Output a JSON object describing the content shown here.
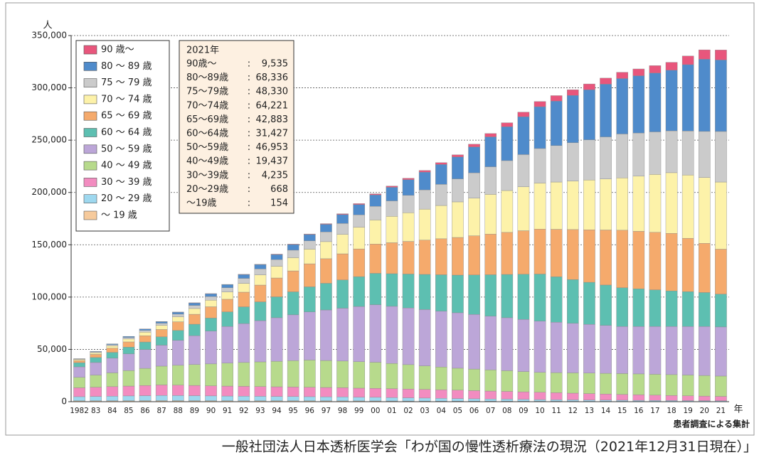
{
  "chart_data": {
    "type": "stacked_bar",
    "y_unit": "人",
    "x_unit": "年",
    "note": "患者調査による集計",
    "source": "一般社団法人日本透析医学会「わが国の慢性透析療法の現況（2021年12月31日現在）」",
    "categories": [
      "1982",
      "83",
      "84",
      "85",
      "86",
      "87",
      "88",
      "89",
      "90",
      "91",
      "92",
      "93",
      "94",
      "95",
      "96",
      "97",
      "98",
      "99",
      "00",
      "01",
      "02",
      "03",
      "04",
      "05",
      "06",
      "07",
      "08",
      "09",
      "10",
      "11",
      "12",
      "13",
      "14",
      "15",
      "16",
      "17",
      "18",
      "19",
      "20",
      "21"
    ],
    "ylim": [
      0,
      350000
    ],
    "yticks": [
      0,
      {
        "value": 50000,
        "label": "50,000"
      },
      {
        "value": 100000,
        "label": "100,000"
      },
      {
        "value": 150000,
        "label": "150,000"
      },
      {
        "value": 200000,
        "label": "200,000"
      },
      {
        "value": 250000,
        "label": "250,000"
      },
      {
        "value": 300000,
        "label": "300,000"
      },
      {
        "value": 350000,
        "label": "350,000"
      }
    ],
    "grid": true,
    "series": [
      {
        "name": "90 歳～",
        "color": "#e8567c",
        "values": [
          0,
          0,
          0,
          100,
          100,
          100,
          100,
          200,
          200,
          200,
          300,
          300,
          400,
          400,
          500,
          600,
          800,
          900,
          1000,
          1200,
          1400,
          1600,
          1800,
          2000,
          2600,
          3200,
          3800,
          4400,
          5000,
          5200,
          5400,
          5600,
          5800,
          6000,
          6500,
          7000,
          7500,
          8300,
          9000,
          9535
        ]
      },
      {
        "name": "80 ～ 89 歳",
        "color": "#4f8bcb",
        "values": [
          300,
          500,
          800,
          1000,
          1300,
          1500,
          1900,
          2300,
          2600,
          3000,
          3600,
          4200,
          4800,
          5400,
          6000,
          7300,
          8500,
          9800,
          11000,
          13000,
          15000,
          17000,
          19000,
          21000,
          24800,
          28600,
          32400,
          36200,
          40000,
          42600,
          45200,
          47800,
          50400,
          53000,
          54700,
          56300,
          58000,
          63500,
          69000,
          68336
        ]
      },
      {
        "name": "75 ～ 79 歳",
        "color": "#cbcbcb",
        "values": [
          500,
          800,
          1100,
          1400,
          1700,
          2000,
          2500,
          3000,
          3500,
          4000,
          4800,
          5600,
          6400,
          7200,
          8000,
          9300,
          10500,
          11800,
          13000,
          14800,
          16600,
          18400,
          20200,
          22000,
          24200,
          26400,
          28600,
          30800,
          33000,
          34800,
          36600,
          38400,
          40200,
          42000,
          41300,
          40700,
          40000,
          42000,
          44000,
          48330
        ]
      },
      {
        "name": "70 ～ 74 歳",
        "color": "#fdf2a9",
        "values": [
          1000,
          1600,
          2200,
          2800,
          3400,
          4000,
          4800,
          5500,
          6300,
          7000,
          8400,
          9800,
          11200,
          12600,
          14000,
          16300,
          18500,
          20800,
          23000,
          25200,
          27400,
          29600,
          31800,
          34000,
          36000,
          38000,
          40000,
          42000,
          44000,
          45200,
          46400,
          47600,
          48800,
          50000,
          52700,
          55300,
          58000,
          60500,
          63000,
          64221
        ]
      },
      {
        "name": "65 ～ 69 歳",
        "color": "#f5aa6c",
        "values": [
          2000,
          3000,
          4000,
          5000,
          6000,
          7000,
          8300,
          9500,
          10800,
          12000,
          14000,
          16000,
          18000,
          20000,
          22000,
          23500,
          25000,
          26500,
          28000,
          29600,
          31200,
          32800,
          34400,
          36000,
          37400,
          38800,
          40200,
          41600,
          43000,
          45400,
          47800,
          50200,
          52600,
          55000,
          55000,
          55000,
          55000,
          51000,
          47000,
          42883
        ]
      },
      {
        "name": "60 ～ 64 歳",
        "color": "#5dbfb1",
        "values": [
          4000,
          4800,
          5600,
          6400,
          7200,
          8000,
          9500,
          11000,
          12500,
          14000,
          16000,
          18000,
          20000,
          22000,
          24000,
          25500,
          27000,
          28500,
          30000,
          31200,
          32400,
          33600,
          34800,
          36000,
          37800,
          39600,
          41400,
          43200,
          45000,
          43400,
          41800,
          40200,
          38600,
          37000,
          36000,
          35000,
          34000,
          33300,
          32500,
          31427
        ]
      },
      {
        "name": "50 ～ 59 歳",
        "color": "#bca6d8",
        "values": [
          10000,
          12000,
          14000,
          16000,
          18000,
          20000,
          23800,
          27500,
          31300,
          35000,
          37200,
          39400,
          41600,
          43800,
          46000,
          48300,
          50500,
          52800,
          55000,
          54600,
          54200,
          53800,
          53400,
          53000,
          52200,
          51400,
          50600,
          49800,
          49000,
          48200,
          47400,
          46600,
          45800,
          45000,
          45300,
          45700,
          46000,
          46400,
          46800,
          46953
        ]
      },
      {
        "name": "40 ～ 49 歳",
        "color": "#b7da8c",
        "values": [
          10000,
          11600,
          13200,
          14800,
          16400,
          18000,
          19000,
          20000,
          21000,
          22000,
          22800,
          23600,
          24400,
          25200,
          26000,
          25800,
          25500,
          25300,
          25000,
          24200,
          23400,
          22600,
          21800,
          21000,
          20600,
          20200,
          19800,
          19400,
          19000,
          19200,
          19400,
          19600,
          19800,
          20000,
          20000,
          20000,
          20000,
          19900,
          19700,
          19437
        ]
      },
      {
        "name": "30 ～ 39 歳",
        "color": "#f28cc0",
        "values": [
          8500,
          8800,
          9100,
          9400,
          9700,
          10000,
          9900,
          9800,
          9600,
          9500,
          9400,
          9300,
          9200,
          9100,
          9000,
          8900,
          8800,
          8600,
          8500,
          8400,
          8300,
          8200,
          8100,
          8000,
          7800,
          7600,
          7400,
          7200,
          7000,
          6700,
          6400,
          6100,
          5800,
          5500,
          5300,
          5000,
          4800,
          4600,
          4400,
          4235
        ]
      },
      {
        "name": "20 ～ 29 歳",
        "color": "#9ed8ef",
        "values": [
          4000,
          4200,
          4400,
          4600,
          4800,
          5000,
          4900,
          4800,
          4600,
          4500,
          4400,
          4300,
          4200,
          4100,
          4000,
          3900,
          3800,
          3600,
          3500,
          3300,
          3100,
          2900,
          2700,
          2500,
          2300,
          2100,
          2000,
          1800,
          1600,
          1500,
          1400,
          1300,
          1200,
          1100,
          1000,
          1000,
          900,
          800,
          750,
          668
        ]
      },
      {
        "name": "～ 19 歳",
        "color": "#f6ca9c",
        "values": [
          800,
          840,
          880,
          920,
          960,
          1000,
          980,
          950,
          930,
          900,
          880,
          860,
          840,
          820,
          800,
          780,
          750,
          730,
          700,
          660,
          620,
          580,
          540,
          500,
          480,
          460,
          440,
          420,
          400,
          380,
          360,
          340,
          320,
          300,
          270,
          230,
          200,
          200,
          200,
          154
        ]
      }
    ],
    "annotation": {
      "title": "2021年",
      "separator": ":",
      "labels": [
        "90歳～",
        "80～89歳",
        "75～79歳",
        "70～74歳",
        "65～69歳",
        "60～64歳",
        "50～59歳",
        "40～49歳",
        "30～39歳",
        "20～29歳",
        "～19歳"
      ],
      "value_labels": [
        "9,535",
        "68,336",
        "48,330",
        "64,221",
        "42,883",
        "31,427",
        "46,953",
        "19,437",
        "4,235",
        "668",
        "154"
      ]
    }
  }
}
